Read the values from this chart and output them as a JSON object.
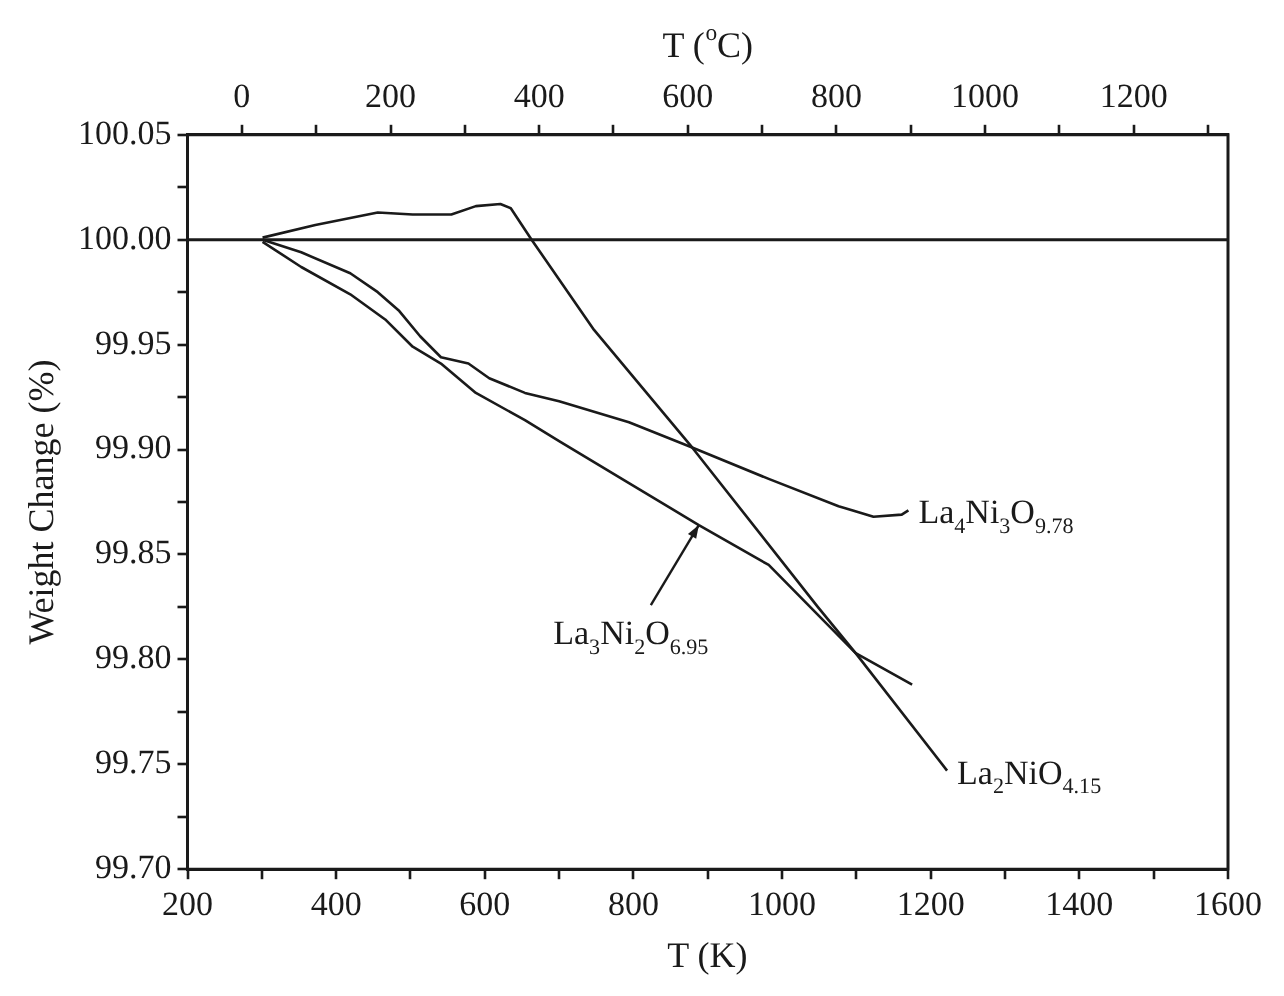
{
  "chart_data": {
    "type": "line",
    "xlabel": "T (K)",
    "ylabel": "Weight Change (%)",
    "x2label": "T ($^{o}$C)",
    "xlim": [
      200,
      1600
    ],
    "xticks": [
      200,
      {
        "value": 300,
        "label": null
      },
      400,
      {
        "value": 500,
        "label": null
      },
      600,
      {
        "value": 700,
        "label": null
      },
      800,
      {
        "value": 900,
        "label": null
      },
      1000,
      {
        "value": 1100,
        "label": null
      },
      1200,
      {
        "value": 1300,
        "label": null
      },
      1400,
      {
        "value": 1500,
        "label": null
      },
      1600
    ],
    "x2lim": [
      -73.15,
      1326.85
    ],
    "x2ticks": [
      0,
      {
        "value": 100,
        "label": null
      },
      200,
      {
        "value": 300,
        "label": null
      },
      400,
      {
        "value": 500,
        "label": null
      },
      600,
      {
        "value": 700,
        "label": null
      },
      800,
      {
        "value": 900,
        "label": null
      },
      1000,
      {
        "value": 1100,
        "label": null
      },
      1200,
      {
        "value": 1300,
        "label": null
      }
    ],
    "ylim": [
      99.7,
      100.05
    ],
    "yticks": [
      {
        "value": 99.7,
        "label": "99.70"
      },
      {
        "value": 99.725,
        "label": null
      },
      99.75,
      {
        "value": 99.775,
        "label": null
      },
      {
        "value": 99.8,
        "label": "99.80"
      },
      {
        "value": 99.825,
        "label": null
      },
      99.85,
      {
        "value": 99.875,
        "label": null
      },
      {
        "value": 99.9,
        "label": "99.90"
      },
      {
        "value": 99.925,
        "label": null
      },
      99.95,
      {
        "value": 99.975,
        "label": null
      },
      {
        "value": 100,
        "label": "100.00"
      },
      {
        "value": 100.025,
        "label": null
      },
      100.05
    ],
    "grid": false,
    "legend": false,
    "marker": "none",
    "line_style": "solid",
    "ref_lines": [
      {
        "axis": "y",
        "value": 100,
        "color": "#1a1a1a"
      }
    ],
    "annotations": [
      {
        "text": "La$_{4}$Ni$_{3}$O$_{9.78}$",
        "x": 1170,
        "y": 99.871
      },
      {
        "text": "La$_{3}$Ni$_{2}$O$_{6.95}$",
        "x": 888,
        "y": 99.864
      },
      {
        "text": "La$_{2}$NiO$_{4.15}$",
        "x": 1222,
        "y": 99.747
      }
    ],
    "series": [
      {
        "color": "#1a1a1a",
        "x": [
          301,
          372,
          456,
          503,
          555,
          588,
          621,
          635,
          663,
          747,
          879,
          1048,
          1099,
          1222
        ],
        "values": [
          100.001,
          100.007,
          100.013,
          100.012,
          100.012,
          100.016,
          100.017,
          100.015,
          100.0,
          99.957,
          99.901,
          99.825,
          99.803,
          99.747
        ]
      },
      {
        "color": "#1a1a1a",
        "x": [
          301,
          353,
          419,
          456,
          485,
          513,
          541,
          578,
          606,
          654,
          700,
          794,
          879,
          982,
          1076,
          1123,
          1161,
          1170
        ],
        "values": [
          100.0,
          99.994,
          99.984,
          99.975,
          99.966,
          99.954,
          99.944,
          99.941,
          99.934,
          99.927,
          99.923,
          99.913,
          99.901,
          99.886,
          99.873,
          99.868,
          99.869,
          99.871
        ]
      },
      {
        "color": "#1a1a1a",
        "x": [
          301,
          353,
          419,
          466,
          503,
          541,
          588,
          654,
          700,
          794,
          888,
          982,
          1099,
          1175
        ],
        "values": [
          99.999,
          99.987,
          99.974,
          99.962,
          99.949,
          99.941,
          99.927,
          99.914,
          99.904,
          99.884,
          99.864,
          99.845,
          99.803,
          99.788
        ]
      }
    ]
  }
}
